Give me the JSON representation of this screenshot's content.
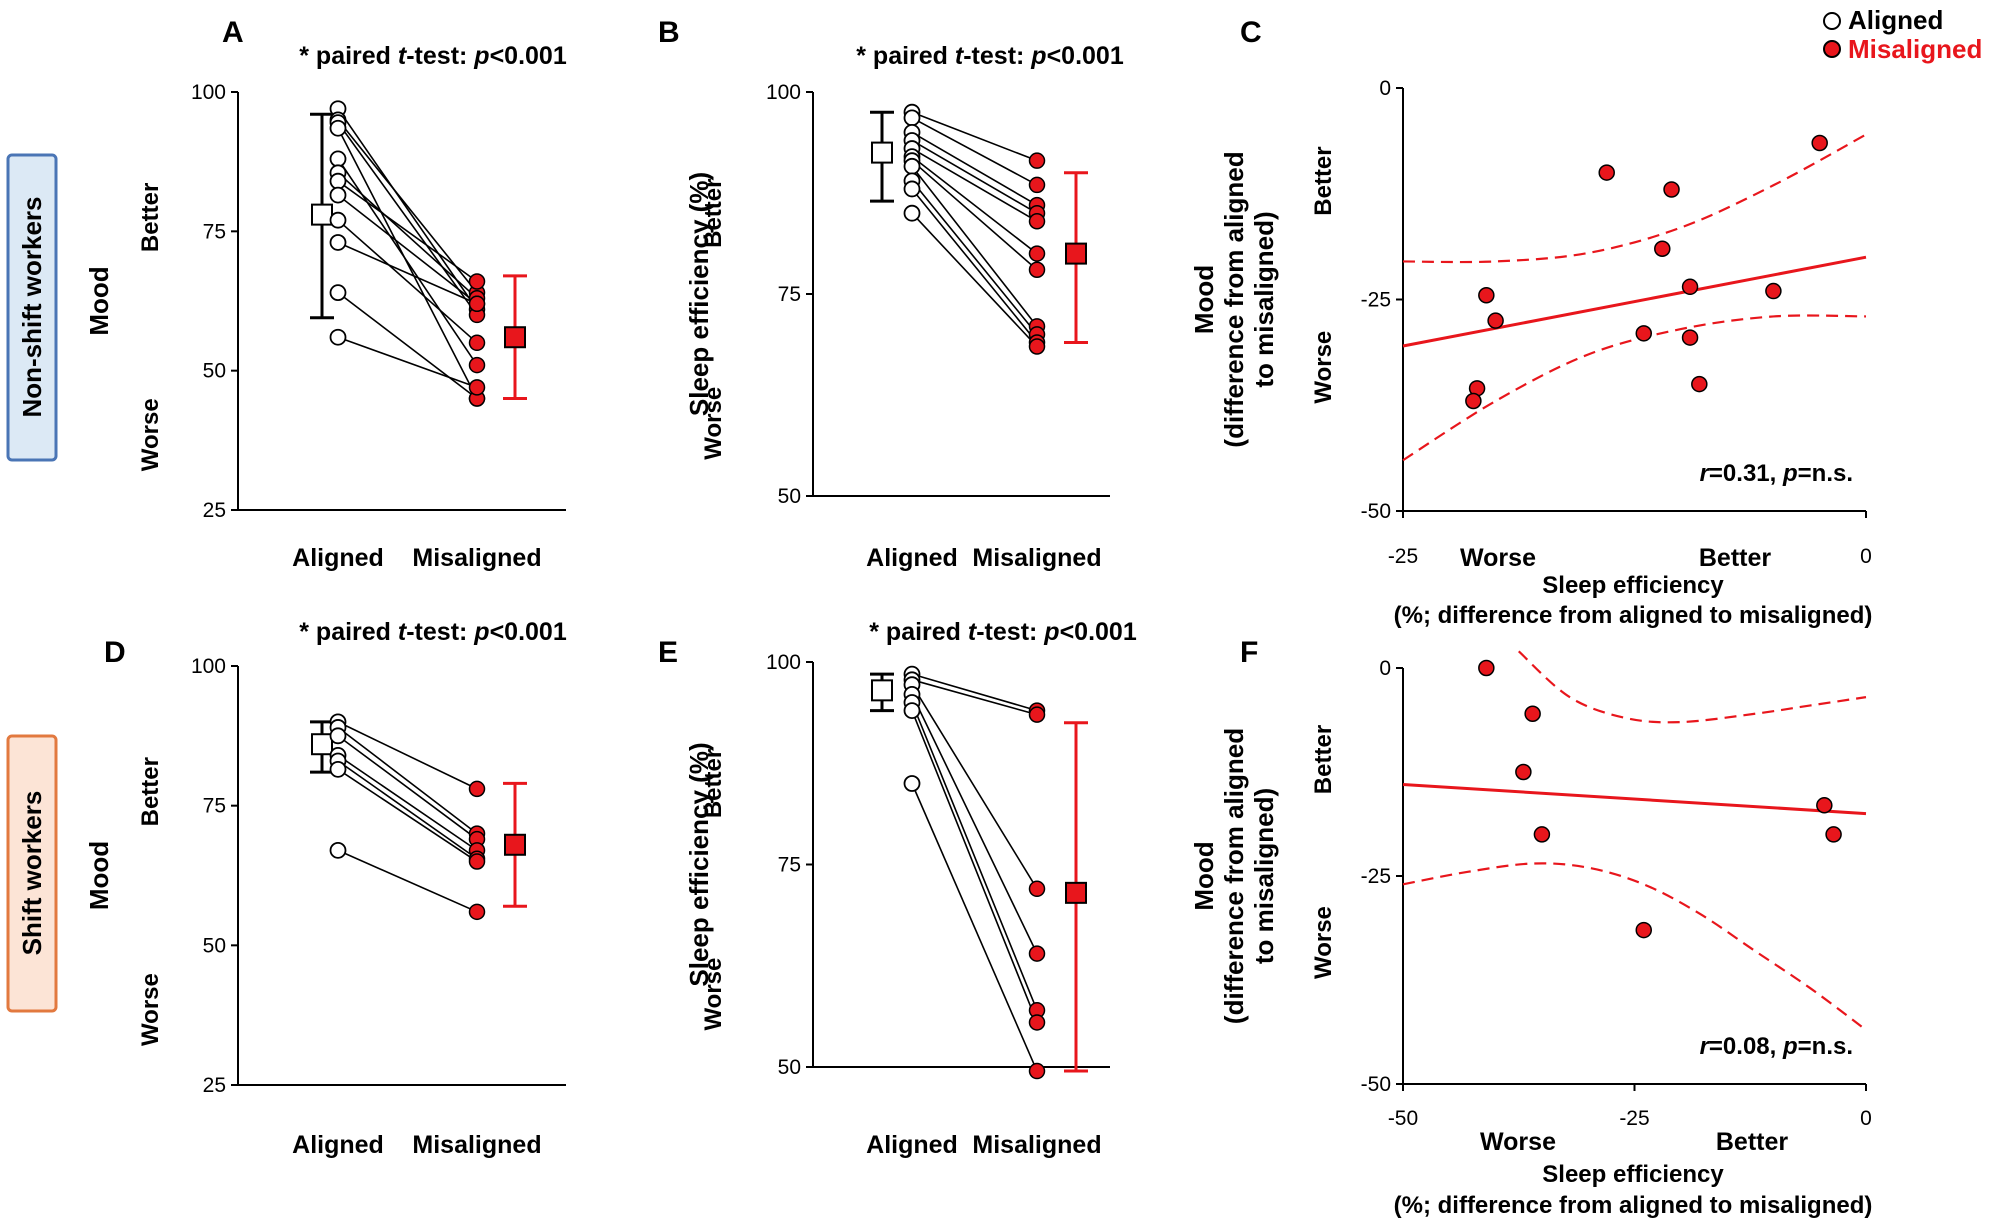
{
  "legend": {
    "aligned_label": "Aligned",
    "misaligned_label": "Misaligned",
    "aligned_color": "#ffffff",
    "misaligned_color": "#e8161c"
  },
  "row_labels": {
    "top": "Non-shift workers",
    "bottom": "Shift workers",
    "top_box_fill": "#dce9f5",
    "top_box_stroke": "#4a75b5",
    "bottom_box_fill": "#fce4d6",
    "bottom_box_stroke": "#e2793f"
  },
  "chart_data": [
    {
      "panel": "A",
      "type": "paired",
      "title": "* paired t-test: p<0.001",
      "title_parts": [
        "* paired ",
        "t",
        "-test: ",
        "p",
        "<0.001"
      ],
      "ylabel": "Mood",
      "better_label": "Better",
      "worse_label": "Worse",
      "categories": [
        "Aligned",
        "Misaligned"
      ],
      "ylim": [
        25,
        100
      ],
      "yticks": [
        25,
        50,
        75,
        100
      ],
      "pairs": [
        [
          97,
          61
        ],
        [
          95,
          64
        ],
        [
          94.5,
          60
        ],
        [
          93.5,
          45
        ],
        [
          88,
          51
        ],
        [
          85.5,
          63
        ],
        [
          84,
          66
        ],
        [
          81.5,
          62
        ],
        [
          77,
          55
        ],
        [
          73,
          62
        ],
        [
          64,
          45
        ],
        [
          56,
          47
        ]
      ],
      "summary": {
        "aligned": {
          "mean": 78,
          "low": 59.5,
          "high": 96
        },
        "misaligned": {
          "mean": 56,
          "low": 45,
          "high": 67
        }
      }
    },
    {
      "panel": "B",
      "type": "paired",
      "title": "* paired t-test: p<0.001",
      "title_parts": [
        "* paired ",
        "t",
        "-test: ",
        "p",
        "<0.001"
      ],
      "ylabel": "Sleep efficiency (%)",
      "better_label": "Better",
      "worse_label": "Worse",
      "categories": [
        "Aligned",
        "Misaligned"
      ],
      "ylim": [
        50,
        100
      ],
      "yticks": [
        50,
        75,
        100
      ],
      "pairs": [
        [
          97.5,
          91.5
        ],
        [
          96.8,
          88.5
        ],
        [
          95,
          86
        ],
        [
          94,
          85
        ],
        [
          93,
          84
        ],
        [
          92,
          80
        ],
        [
          91.5,
          78
        ],
        [
          90.8,
          71
        ],
        [
          89,
          70
        ],
        [
          88,
          69
        ],
        [
          85,
          68.5
        ]
      ],
      "summary": {
        "aligned": {
          "mean": 92.5,
          "low": 86.5,
          "high": 97.5
        },
        "misaligned": {
          "mean": 80,
          "low": 69,
          "high": 90
        }
      }
    },
    {
      "panel": "C",
      "type": "scatter",
      "ylabel_lines": [
        "Mood",
        "(difference from aligned",
        "to misaligned)"
      ],
      "better_label": "Better",
      "worse_label": "Worse",
      "xlabel_lines": [
        "Sleep efficiency",
        "(%; difference from aligned to misaligned)"
      ],
      "x_worse": "Worse",
      "x_better": "Better",
      "xlim": [
        -25,
        0
      ],
      "ylim": [
        -50,
        0
      ],
      "xticks": [
        -25,
        0
      ],
      "yticks": [
        -50,
        -25,
        0
      ],
      "points": [
        [
          -2.5,
          -6.5
        ],
        [
          -14,
          -10
        ],
        [
          -10.5,
          -12
        ],
        [
          -11,
          -19
        ],
        [
          -9.5,
          -23.5
        ],
        [
          -5,
          -24
        ],
        [
          -20.5,
          -24.5
        ],
        [
          -20,
          -27.5
        ],
        [
          -12,
          -29
        ],
        [
          -9.5,
          -29.5
        ],
        [
          -9,
          -35
        ],
        [
          -21,
          -35.5
        ],
        [
          -21.2,
          -37
        ]
      ],
      "fit": {
        "x": [
          -25,
          0
        ],
        "y": [
          -30.5,
          -20
        ]
      },
      "ci_upper": {
        "x": [
          -25,
          -20,
          -15,
          -10,
          -5,
          0
        ],
        "y": [
          -20.5,
          -20.5,
          -19.5,
          -16.5,
          -11.5,
          -5.5
        ]
      },
      "ci_lower": {
        "x": [
          -25,
          -20,
          -15,
          -10,
          -5,
          0
        ],
        "y": [
          -44,
          -37,
          -31.5,
          -28.5,
          -27,
          -27
        ]
      },
      "stat_parts": [
        "r",
        "=0.31, ",
        "p",
        "=n.s."
      ],
      "stat": "r=0.31, p=n.s."
    },
    {
      "panel": "D",
      "type": "paired",
      "title": "* paired t-test: p<0.001",
      "title_parts": [
        "* paired ",
        "t",
        "-test: ",
        "p",
        "<0.001"
      ],
      "ylabel": "Mood",
      "better_label": "Better",
      "worse_label": "Worse",
      "categories": [
        "Aligned",
        "Misaligned"
      ],
      "ylim": [
        25,
        100
      ],
      "yticks": [
        25,
        50,
        75,
        100
      ],
      "pairs": [
        [
          90,
          78
        ],
        [
          89,
          70
        ],
        [
          87.5,
          69
        ],
        [
          84,
          67
        ],
        [
          83,
          65.5
        ],
        [
          81.5,
          65
        ],
        [
          67,
          56
        ]
      ],
      "summary": {
        "aligned": {
          "mean": 86,
          "low": 81,
          "high": 90
        },
        "misaligned": {
          "mean": 68,
          "low": 57,
          "high": 79
        }
      }
    },
    {
      "panel": "E",
      "type": "paired",
      "title": "* paired t-test: p<0.001",
      "title_parts": [
        "* paired ",
        "t",
        "-test: ",
        "p",
        "<0.001"
      ],
      "ylabel": "Sleep efficiency (%)",
      "better_label": "Better",
      "worse_label": "Worse",
      "categories": [
        "Aligned",
        "Misaligned"
      ],
      "ylim": [
        50,
        100
      ],
      "yticks": [
        50,
        75,
        100
      ],
      "pairs": [
        [
          98.5,
          94
        ],
        [
          97.8,
          93.5
        ],
        [
          97.2,
          72
        ],
        [
          96,
          64
        ],
        [
          95,
          57
        ],
        [
          94,
          55.5
        ],
        [
          85,
          49.5
        ]
      ],
      "summary": {
        "aligned": {
          "mean": 96.5,
          "low": 94,
          "high": 98.5
        },
        "misaligned": {
          "mean": 71.5,
          "low": 49.5,
          "high": 92.5
        }
      }
    },
    {
      "panel": "F",
      "type": "scatter",
      "ylabel_lines": [
        "Mood",
        "(difference from aligned",
        "to misaligned)"
      ],
      "better_label": "Better",
      "worse_label": "Worse",
      "xlabel_lines": [
        "Sleep efficiency",
        "(%; difference from aligned to misaligned)"
      ],
      "x_worse": "Worse",
      "x_better": "Better",
      "xlim": [
        -50,
        0
      ],
      "ylim": [
        -50,
        0
      ],
      "xticks": [
        -50,
        -25,
        0
      ],
      "yticks": [
        -50,
        -25,
        0
      ],
      "points": [
        [
          -41,
          0
        ],
        [
          -36,
          -5.5
        ],
        [
          -37,
          -12.5
        ],
        [
          -35,
          -20
        ],
        [
          -24,
          -31.5
        ],
        [
          -4.5,
          -16.5
        ],
        [
          -3.5,
          -20
        ]
      ],
      "fit": {
        "x": [
          -50,
          0
        ],
        "y": [
          -14,
          -17.5
        ]
      },
      "ci_upper": {
        "x": [
          -37.5,
          -32,
          -26,
          -20,
          -12,
          -6,
          0
        ],
        "y": [
          2,
          -3.5,
          -6,
          -6.5,
          -5.5,
          -4.5,
          -3.5
        ]
      },
      "ci_lower": {
        "x": [
          -50,
          -43,
          -36,
          -30,
          -24,
          -18,
          -12,
          -6,
          0
        ],
        "y": [
          -26,
          -24.5,
          -23.5,
          -24,
          -26,
          -29.5,
          -34,
          -38.5,
          -43.5
        ]
      },
      "stat_parts": [
        "r",
        "=0.08, ",
        "p",
        "=n.s."
      ],
      "stat": "r=0.08, p=n.s."
    }
  ]
}
